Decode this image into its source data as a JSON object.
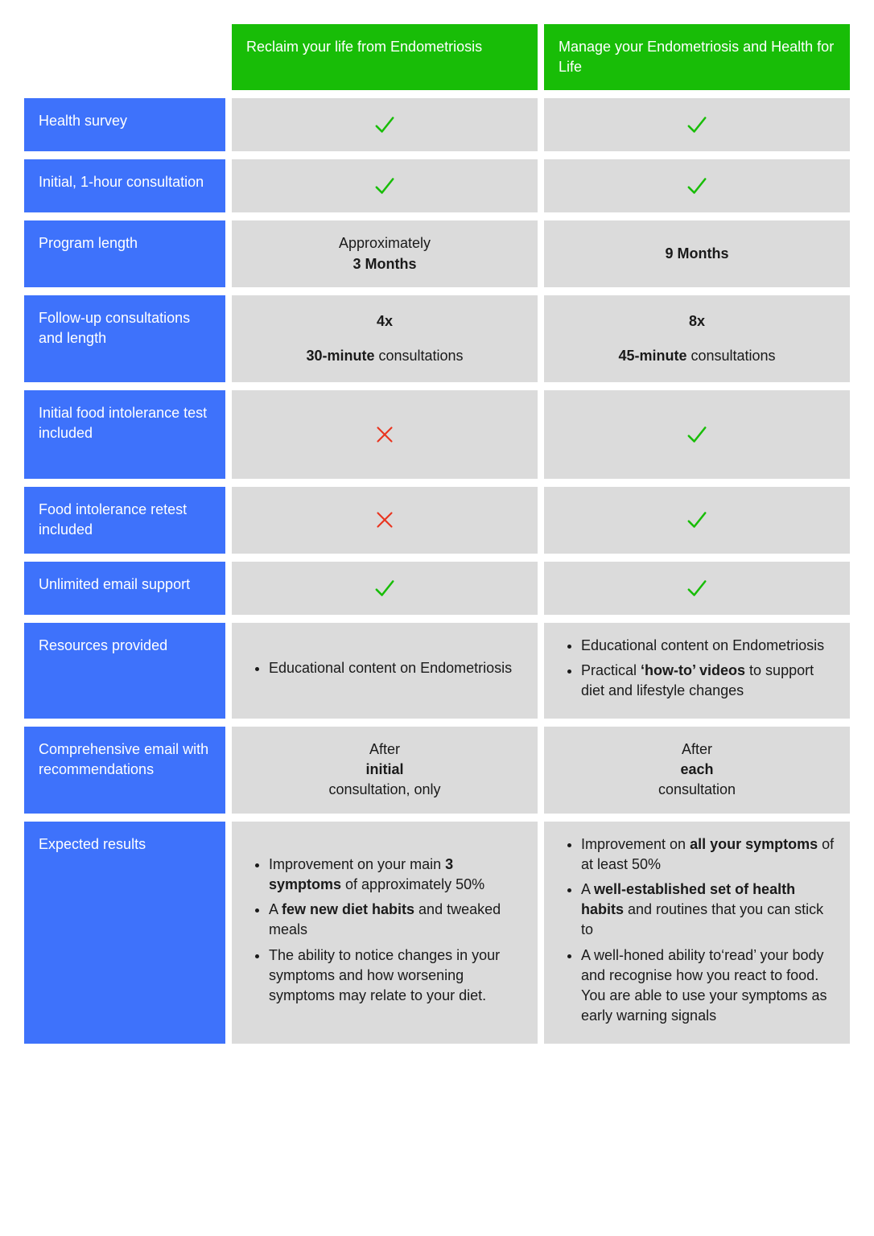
{
  "colors": {
    "header_bg": "#18bd07",
    "row_bg": "#3e72fb",
    "cell_bg": "#dbdbdb",
    "check_stroke": "#18bd07",
    "cross_stroke": "#e9341f",
    "text_white": "#ffffff",
    "text_dark": "#1a1a1a"
  },
  "plans": {
    "a": "Reclaim your life from Endometriosis",
    "b": "Manage your Endometriosis and Health for Life"
  },
  "rows": {
    "health_survey": {
      "label": "Health survey",
      "a": {
        "type": "check"
      },
      "b": {
        "type": "check"
      }
    },
    "initial_consult": {
      "label": "Initial, 1-hour consultation",
      "a": {
        "type": "check"
      },
      "b": {
        "type": "check"
      }
    },
    "program_length": {
      "label": "Program length",
      "a": {
        "type": "html",
        "html": "Approximately <b>3 Months</b>"
      },
      "b": {
        "type": "html",
        "html": "<b>9 Months</b>"
      }
    },
    "followup": {
      "label": "Follow-up consultations and length",
      "a": {
        "type": "html",
        "html": "<p><b>4x</b></p><p style='margin-top:14px'><b>30-minute</b> consultations</p>"
      },
      "b": {
        "type": "html",
        "html": "<p><b>8x</b></p><p style='margin-top:14px'><b>45-minute</b> consultations</p>"
      }
    },
    "food_test": {
      "label": "Initial food intolerance test included",
      "a": {
        "type": "cross"
      },
      "b": {
        "type": "check"
      },
      "tall": true
    },
    "food_retest": {
      "label": "Food intolerance retest included",
      "a": {
        "type": "cross"
      },
      "b": {
        "type": "check"
      }
    },
    "email_support": {
      "label": "Unlimited email support",
      "a": {
        "type": "check"
      },
      "b": {
        "type": "check"
      }
    },
    "resources": {
      "label": "Resources provided",
      "a": {
        "type": "list",
        "items": [
          "Educational content on Endometriosis"
        ]
      },
      "b": {
        "type": "list",
        "items": [
          "Educational content on Endometriosis",
          "Practical <b>‘how-to’ videos</b> to support diet and lifestyle changes"
        ]
      }
    },
    "comp_email": {
      "label": "Comprehensive email with recommendations",
      "a": {
        "type": "html",
        "html": "After <b>initial</b> consultation, only"
      },
      "b": {
        "type": "html",
        "html": "After <b>each</b> consultation"
      }
    },
    "results": {
      "label": "Expected results",
      "a": {
        "type": "list",
        "items": [
          "Improvement on your main <b>3 symptoms</b> of approximately 50%",
          " A <b>few new diet habits</b> and tweaked meals",
          "The ability to notice changes in your symptoms and how worsening symptoms may relate to your diet."
        ]
      },
      "b": {
        "type": "list",
        "items": [
          "Improvement on <b>all your symptoms</b> of at least 50%",
          "A <b>well-established set of health habits</b> and routines that you can stick to",
          "A well-honed ability to‘read’ your body and recognise how you react to food. You are able to use your symptoms as early warning signals"
        ]
      }
    }
  },
  "row_order": [
    "health_survey",
    "initial_consult",
    "program_length",
    "followup",
    "food_test",
    "food_retest",
    "email_support",
    "resources",
    "comp_email",
    "results"
  ]
}
